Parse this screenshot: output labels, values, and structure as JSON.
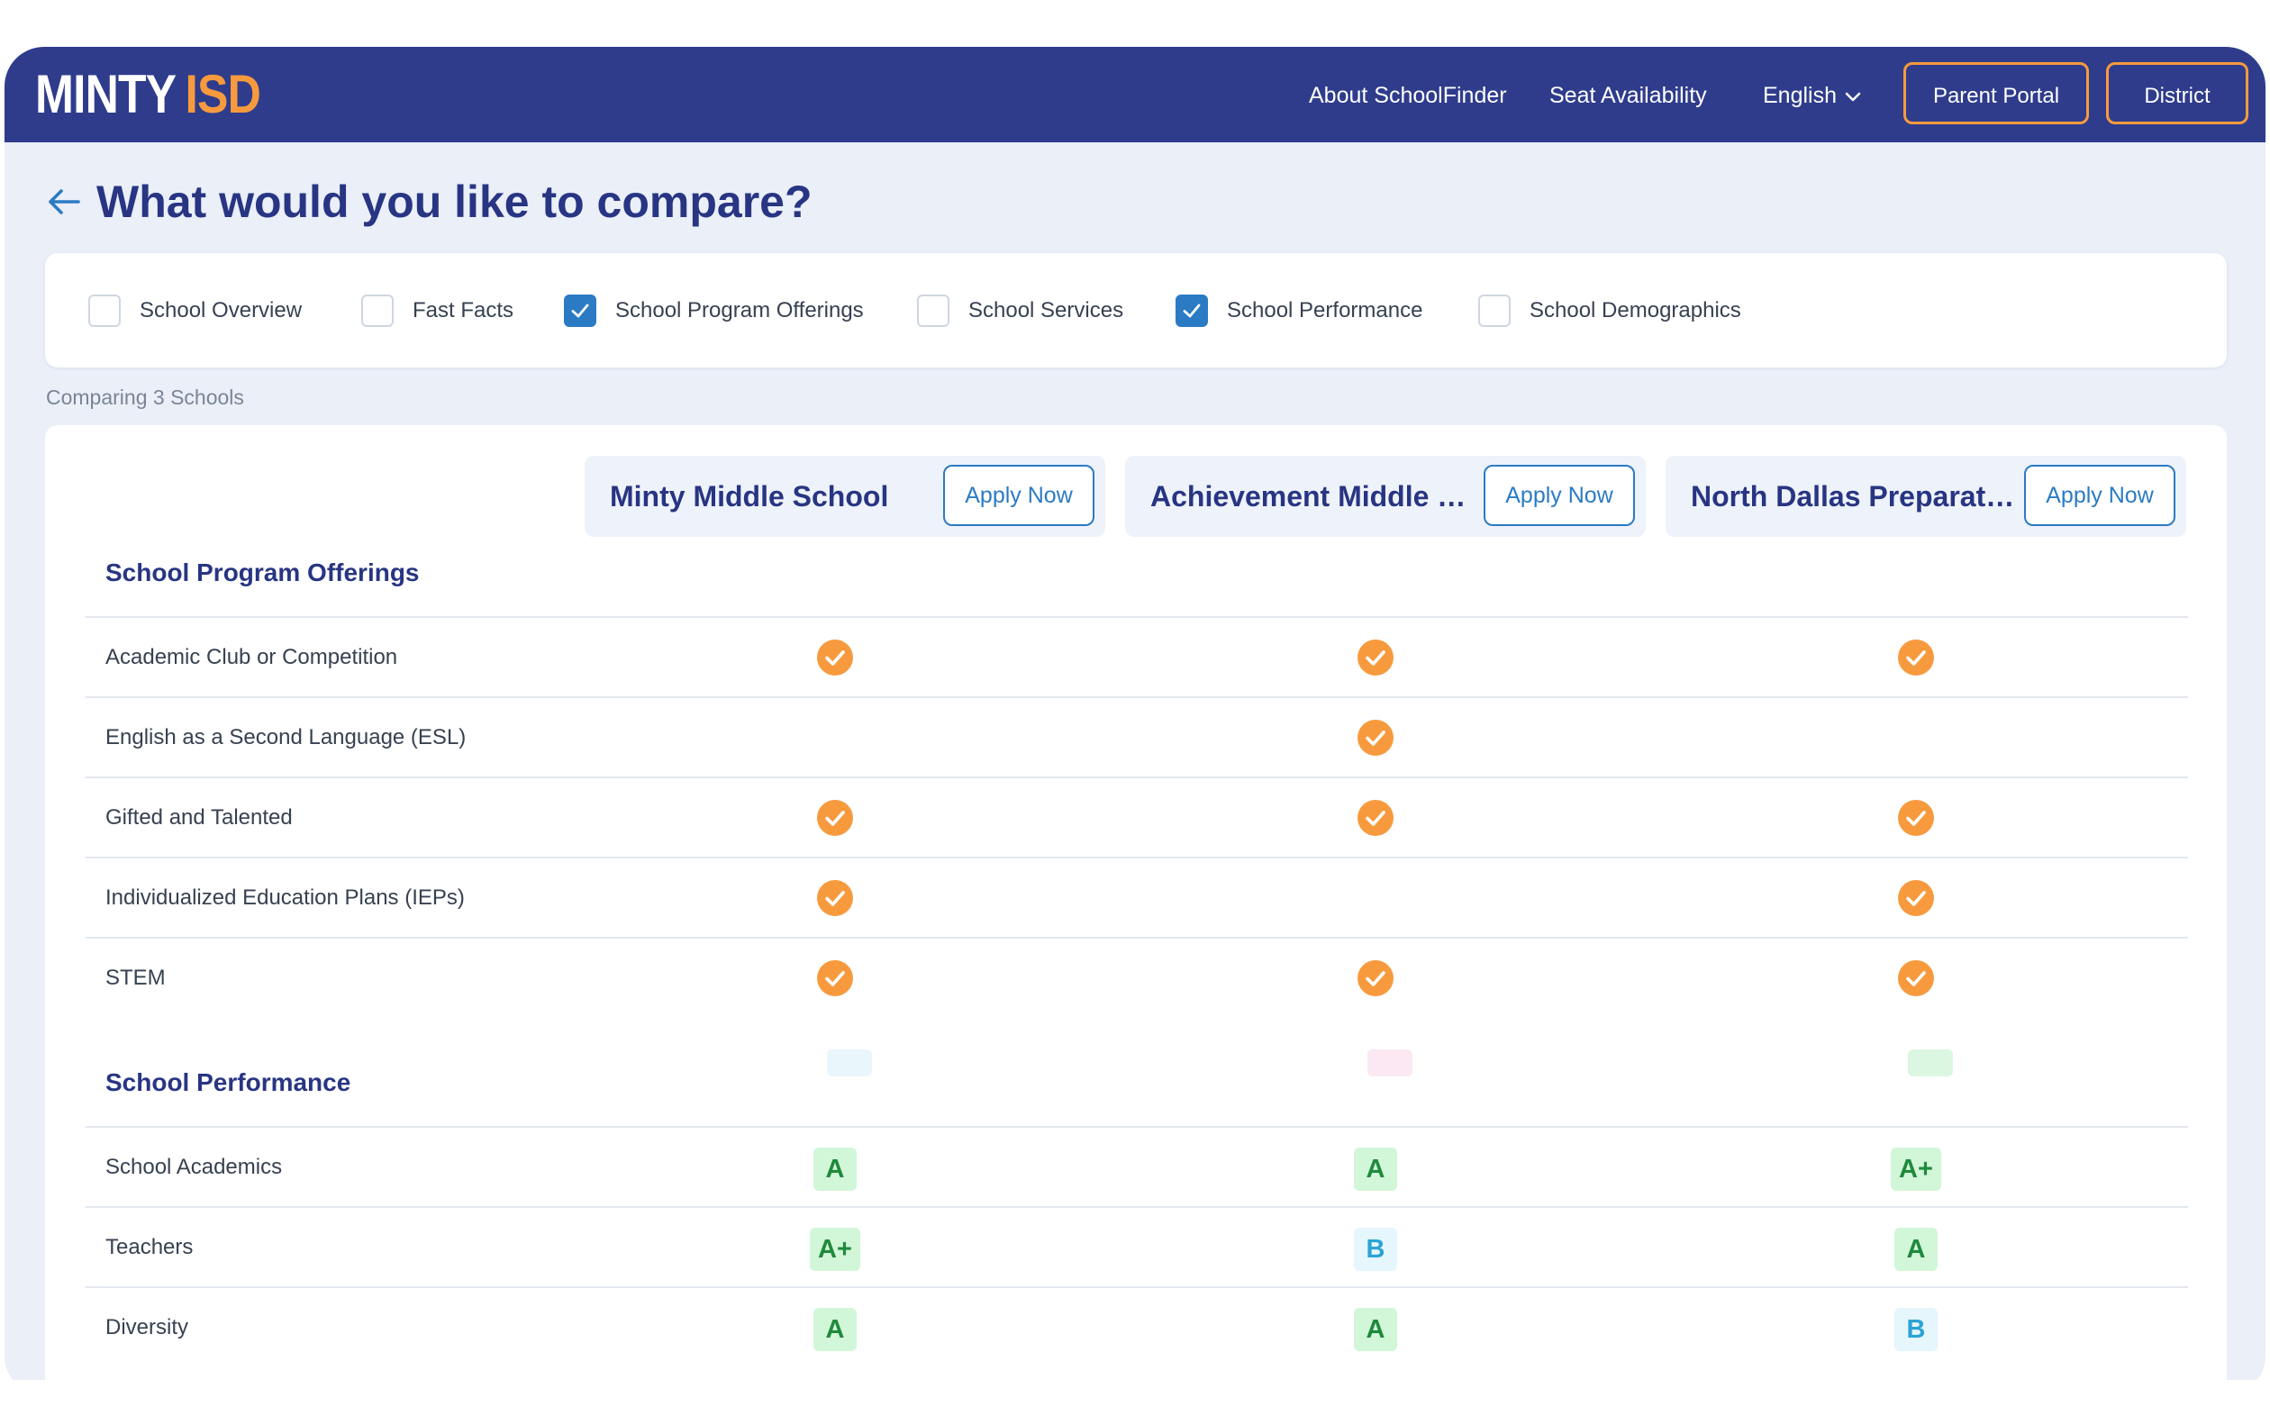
{
  "header": {
    "logo_part1": "MINTY",
    "logo_part2": "ISD",
    "nav": [
      "About SchoolFinder",
      "Seat Availability"
    ],
    "language": "English",
    "parent_portal": "Parent Portal",
    "district": "District"
  },
  "page": {
    "title": "What would you like to compare?",
    "comparing": "Comparing 3 Schools"
  },
  "options": [
    {
      "label": "School Overview",
      "checked": false
    },
    {
      "label": "Fast Facts",
      "checked": false
    },
    {
      "label": "School Program Offerings",
      "checked": true
    },
    {
      "label": "School Services",
      "checked": false
    },
    {
      "label": "School Performance",
      "checked": true
    },
    {
      "label": "School Demographics",
      "checked": false
    }
  ],
  "schools": [
    {
      "name": "Minty Middle School",
      "apply": "Apply Now"
    },
    {
      "name": "Achievement Middle Sc...",
      "apply": "Apply Now"
    },
    {
      "name": "North Dallas Preparator...",
      "apply": "Apply Now"
    }
  ],
  "program_offerings": {
    "title": "School Program Offerings",
    "rows": [
      {
        "label": "Academic Club or Competition",
        "values": [
          true,
          true,
          true
        ]
      },
      {
        "label": "English as a Second Language (ESL)",
        "values": [
          false,
          true,
          false
        ]
      },
      {
        "label": "Gifted and Talented",
        "values": [
          true,
          true,
          true
        ]
      },
      {
        "label": "Individualized Education Plans (IEPs)",
        "values": [
          true,
          false,
          true
        ]
      },
      {
        "label": "STEM",
        "values": [
          true,
          true,
          true
        ]
      }
    ]
  },
  "performance": {
    "title": "School Performance",
    "rows": [
      {
        "label": "School Academics",
        "values": [
          "A",
          "A",
          "A+"
        ]
      },
      {
        "label": "Teachers",
        "values": [
          "A+",
          "B",
          "A"
        ]
      },
      {
        "label": "Diversity",
        "values": [
          "A",
          "A",
          "B"
        ]
      }
    ]
  },
  "colors": {
    "header_bg": "#2f3c8c",
    "accent_orange": "#f79a3e",
    "primary_blue": "#2b7bc4",
    "title_navy": "#283583",
    "grade_a_bg": "#d2f6d8",
    "grade_a_text": "#1f8a3c",
    "grade_b_bg": "#e5f6fc",
    "grade_b_text": "#2ba3d6"
  },
  "icons": {
    "back": "arrow-left-icon",
    "language": "chevron-down-icon",
    "offering": "check-circle-icon",
    "checkbox": "checkbox-check-icon"
  }
}
